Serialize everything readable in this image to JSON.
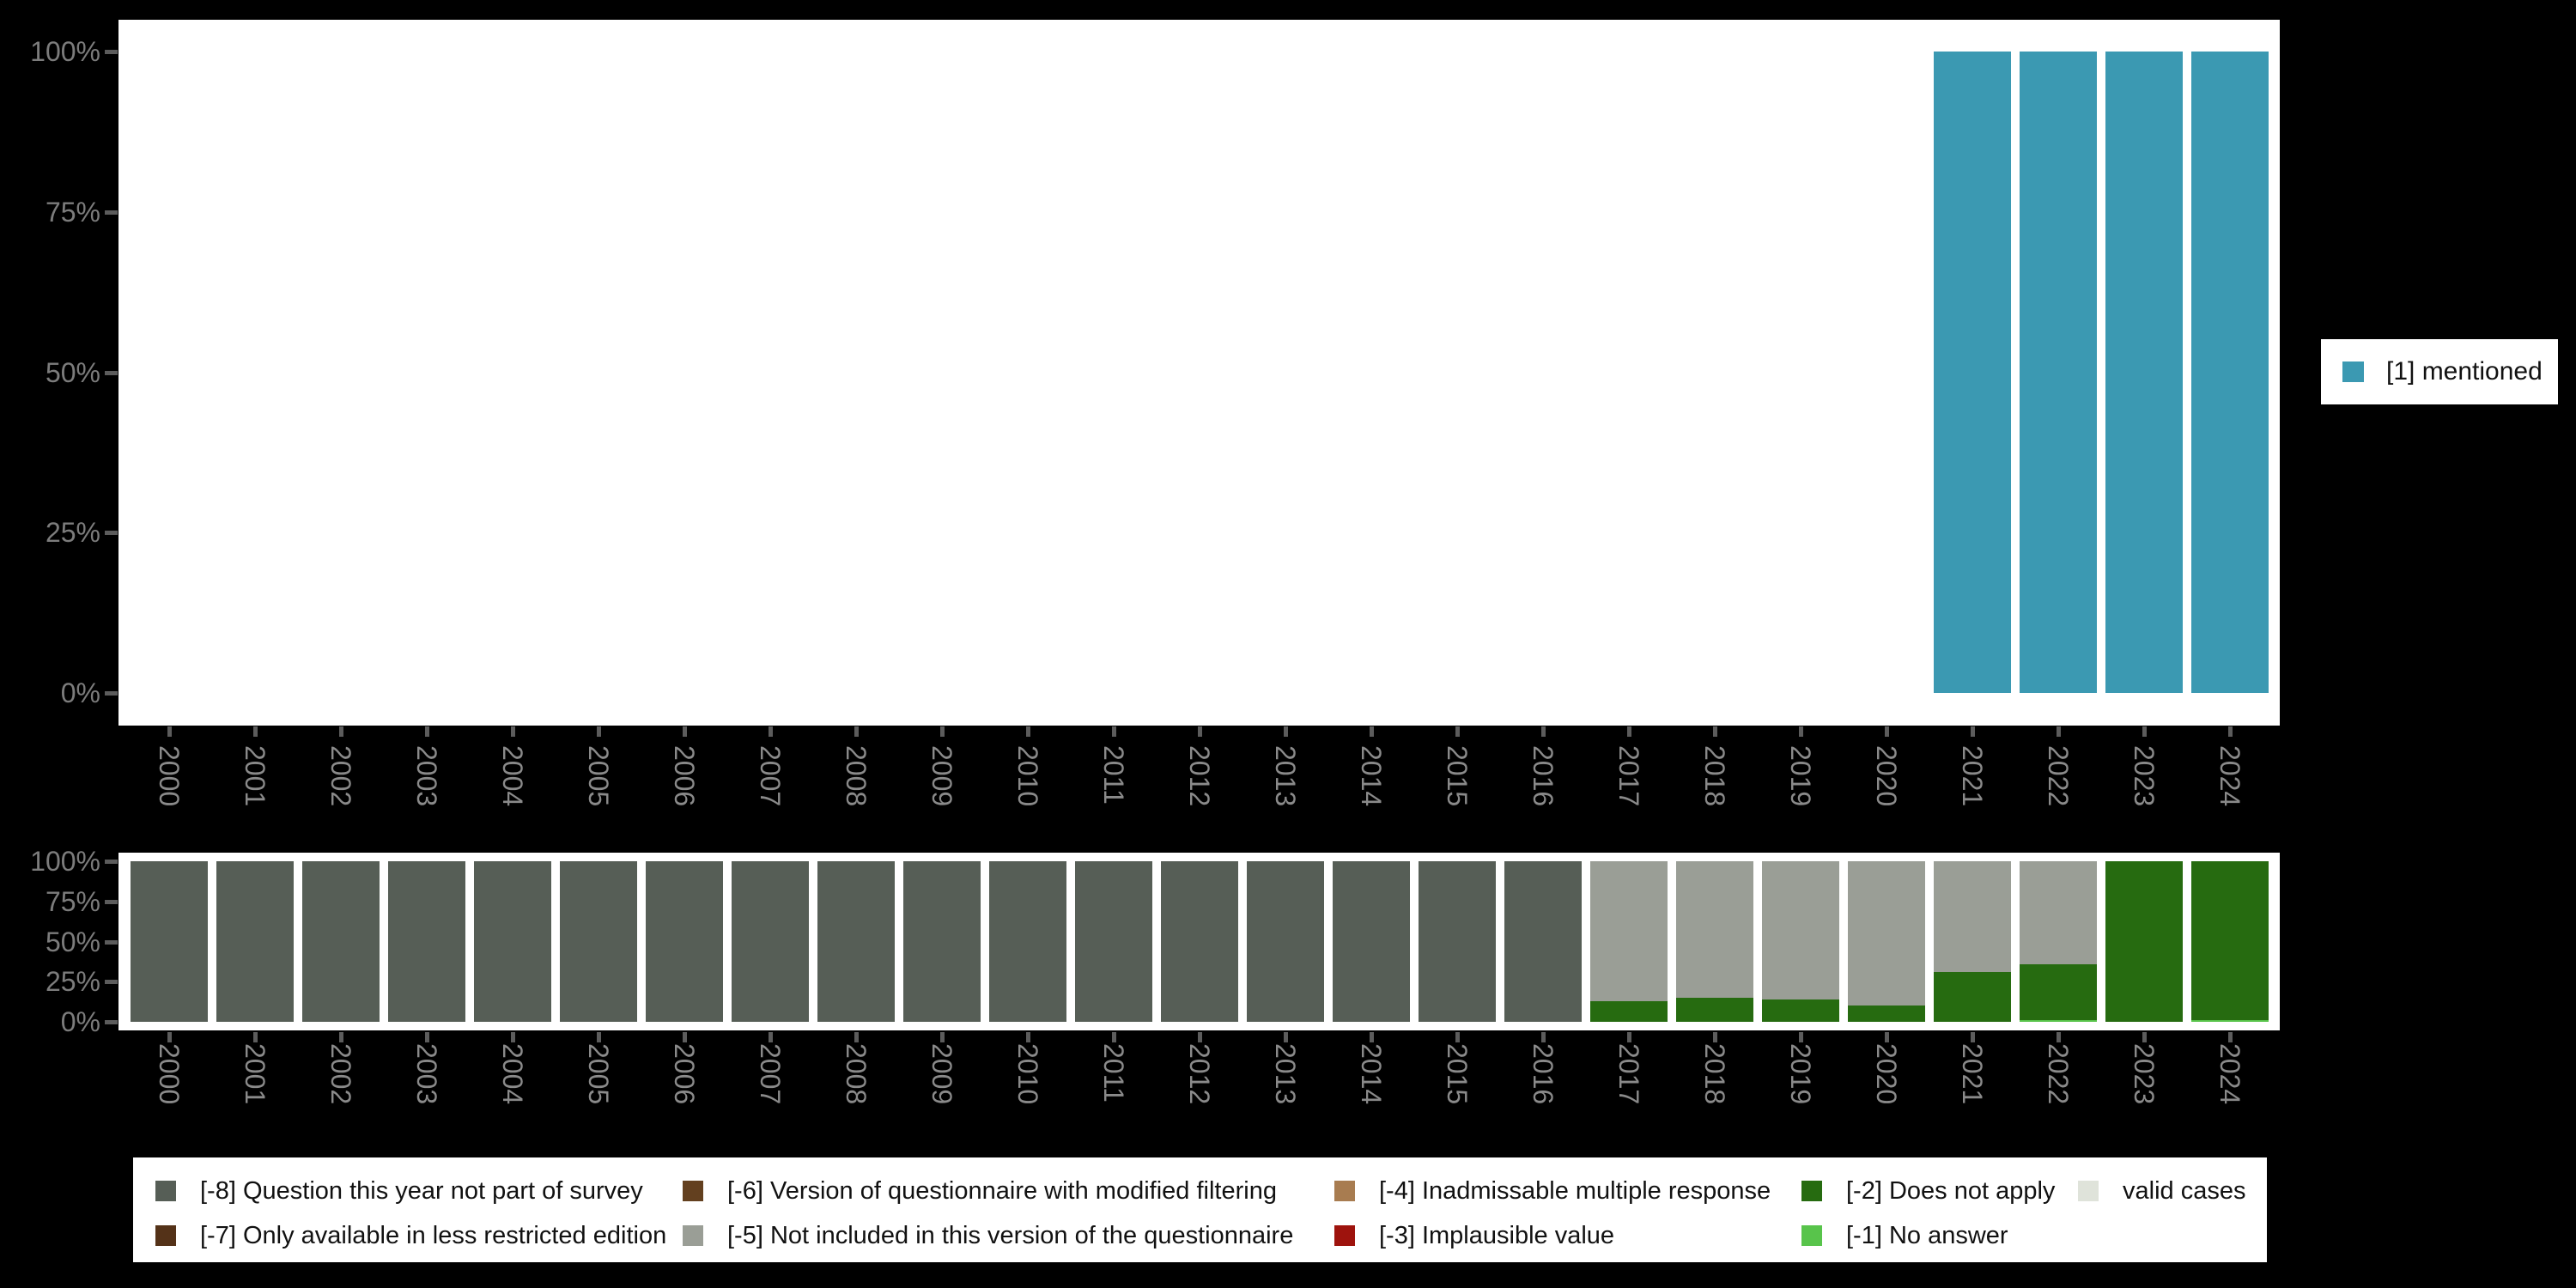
{
  "right_legend": {
    "label": "[1] mentioned",
    "color": "#3b99b2"
  },
  "bottom_legend": {
    "items": [
      {
        "label": "[-8] Question this year not part of survey",
        "color": "#565e56"
      },
      {
        "label": "[-7] Only available in less restricted edition",
        "color": "#543218"
      },
      {
        "label": "[-6] Version of questionnaire with modified filtering",
        "color": "#63401f"
      },
      {
        "label": "[-5] Not included in this version of the questionnaire",
        "color": "#9a9e96"
      },
      {
        "label": "[-4] Inadmissable multiple response",
        "color": "#a87c50"
      },
      {
        "label": "[-3] Implausible value",
        "color": "#9e130d"
      },
      {
        "label": "[-2] Does not apply",
        "color": "#266b10"
      },
      {
        "label": "[-1] No answer",
        "color": "#58c44b"
      },
      {
        "label": "valid cases",
        "color": "#dfe3da"
      }
    ]
  },
  "axes": {
    "percent_ticks_top_to_bottom": [
      "100%",
      "75%",
      "50%",
      "25%",
      "0%"
    ]
  },
  "chart_data": [
    {
      "type": "bar",
      "stacked": true,
      "title": "",
      "xlabel": "",
      "ylabel": "",
      "ylim": [
        0,
        100
      ],
      "grid": false,
      "legend_position": "right",
      "categories": [
        "2000",
        "2001",
        "2002",
        "2003",
        "2004",
        "2005",
        "2006",
        "2007",
        "2008",
        "2009",
        "2010",
        "2011",
        "2012",
        "2013",
        "2014",
        "2015",
        "2016",
        "2017",
        "2018",
        "2019",
        "2020",
        "2021",
        "2022",
        "2023",
        "2024"
      ],
      "series": [
        {
          "name": "[1] mentioned",
          "color": "#3b99b2",
          "values": [
            0,
            0,
            0,
            0,
            0,
            0,
            0,
            0,
            0,
            0,
            0,
            0,
            0,
            0,
            0,
            0,
            0,
            0,
            0,
            0,
            0,
            100,
            100,
            100,
            100
          ]
        }
      ]
    },
    {
      "type": "bar",
      "stacked": true,
      "title": "",
      "xlabel": "",
      "ylabel": "",
      "ylim": [
        0,
        100
      ],
      "grid": false,
      "legend_position": "bottom",
      "categories": [
        "2000",
        "2001",
        "2002",
        "2003",
        "2004",
        "2005",
        "2006",
        "2007",
        "2008",
        "2009",
        "2010",
        "2011",
        "2012",
        "2013",
        "2014",
        "2015",
        "2016",
        "2017",
        "2018",
        "2019",
        "2020",
        "2021",
        "2022",
        "2023",
        "2024"
      ],
      "series": [
        {
          "name": "[-1] No answer",
          "color": "#58c44b",
          "values": [
            0,
            0,
            0,
            0,
            0,
            0,
            0,
            0,
            0,
            0,
            0,
            0,
            0,
            0,
            0,
            0,
            0,
            0,
            0,
            0,
            0,
            0,
            1,
            0,
            1
          ]
        },
        {
          "name": "[-2] Does not apply",
          "color": "#266b10",
          "values": [
            0,
            0,
            0,
            0,
            0,
            0,
            0,
            0,
            0,
            0,
            0,
            0,
            0,
            0,
            0,
            0,
            0,
            13,
            15,
            14,
            10,
            31,
            35,
            100,
            99
          ]
        },
        {
          "name": "[-5] Not included in this version of the questionnaire",
          "color": "#9a9e96",
          "values": [
            0,
            0,
            0,
            0,
            0,
            0,
            0,
            0,
            0,
            0,
            0,
            0,
            0,
            0,
            0,
            0,
            0,
            87,
            85,
            86,
            90,
            69,
            64,
            0,
            0
          ]
        },
        {
          "name": "[-8] Question this year not part of survey",
          "color": "#565e56",
          "values": [
            100,
            100,
            100,
            100,
            100,
            100,
            100,
            100,
            100,
            100,
            100,
            100,
            100,
            100,
            100,
            100,
            100,
            0,
            0,
            0,
            0,
            0,
            0,
            0,
            0
          ]
        }
      ]
    }
  ]
}
